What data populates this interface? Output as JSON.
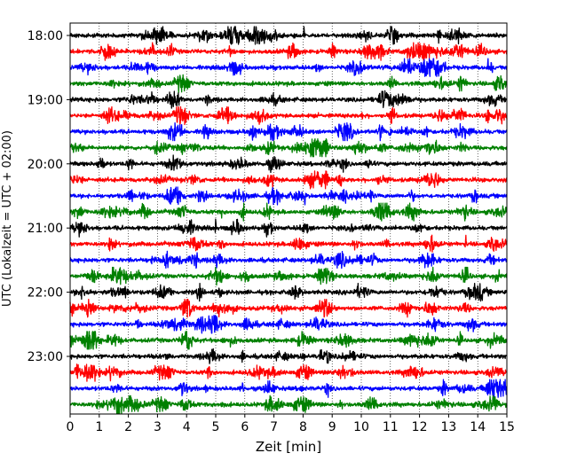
{
  "chart_data": {
    "type": "line",
    "title": "",
    "xlabel": "Zeit  [min]",
    "ylabel": "UTC (Lokalzeit = UTC + 02:00)",
    "xlim": [
      0,
      15
    ],
    "x_ticks": [
      "0",
      "1",
      "2",
      "3",
      "4",
      "5",
      "6",
      "7",
      "8",
      "9",
      "10",
      "11",
      "12",
      "13",
      "14",
      "15"
    ],
    "y_ticks": [
      "18:00",
      "19:00",
      "20:00",
      "21:00",
      "22:00",
      "23:00"
    ],
    "grid": "vertical dotted lines at each minute",
    "line_color_cycle": [
      "#000000",
      "#ff0000",
      "#0000ff",
      "#008000"
    ],
    "trace_start_times": [
      "18:00",
      "18:15",
      "18:30",
      "18:45",
      "19:00",
      "19:15",
      "19:30",
      "19:45",
      "20:00",
      "20:15",
      "20:30",
      "20:45",
      "21:00",
      "21:15",
      "21:30",
      "21:45",
      "22:00",
      "22:15",
      "22:30",
      "22:45",
      "23:00",
      "23:15",
      "23:30",
      "23:45"
    ],
    "trace_duration_min": 15
  }
}
